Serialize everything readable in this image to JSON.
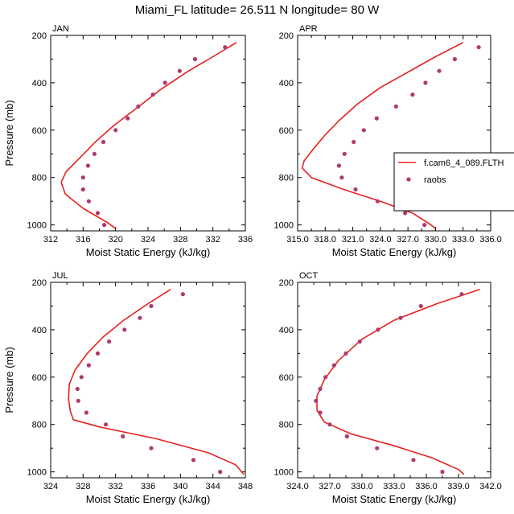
{
  "title": "Miami_FL  latitude= 26.511 N longitude= 80 W",
  "colors": {
    "model": "#e8201f",
    "obs": "#b03a6a",
    "axis": "#000000"
  },
  "legend": {
    "model": "f.cam6_4_089.FLTH",
    "obs": "raobs",
    "placement": "right of APR panel"
  },
  "chart_data": [
    {
      "type": "line",
      "panel": "JAN",
      "xlabel": "Moist Static Energy (kJ/kg)",
      "ylabel": "Pressure (mb)",
      "xlim": [
        312,
        336
      ],
      "ylim": [
        1025,
        200
      ],
      "xticks": [
        312,
        316,
        320,
        324,
        328,
        332,
        336
      ],
      "xtick_labels": [
        "312",
        "316",
        "320",
        "324",
        "328",
        "332",
        "336"
      ],
      "yticks": [
        200,
        400,
        600,
        800,
        1000
      ],
      "ytick_labels": [
        "200",
        "400",
        "600",
        "800",
        "1000"
      ],
      "series": [
        {
          "name": "f.cam6_4_089.FLTH",
          "kind": "line",
          "points": [
            [
              334.9,
              230
            ],
            [
              332.0,
              290
            ],
            [
              329.0,
              350
            ],
            [
              325.5,
              430
            ],
            [
              322.5,
              510
            ],
            [
              319.8,
              580
            ],
            [
              317.5,
              650
            ],
            [
              315.5,
              720
            ],
            [
              313.9,
              775
            ],
            [
              313.3,
              820
            ],
            [
              313.8,
              870
            ],
            [
              316.0,
              930
            ],
            [
              319.0,
              990
            ],
            [
              320.0,
              1015
            ]
          ]
        },
        {
          "name": "raobs",
          "kind": "scatter",
          "points": [
            [
              333.5,
              250
            ],
            [
              329.8,
              300
            ],
            [
              327.9,
              350
            ],
            [
              326.1,
              400
            ],
            [
              324.6,
              450
            ],
            [
              322.8,
              500
            ],
            [
              321.5,
              550
            ],
            [
              320.0,
              600
            ],
            [
              318.5,
              650
            ],
            [
              317.4,
              700
            ],
            [
              316.6,
              750
            ],
            [
              316.0,
              800
            ],
            [
              316.0,
              850
            ],
            [
              316.7,
              900
            ],
            [
              317.8,
              950
            ],
            [
              318.6,
              1000
            ]
          ]
        }
      ]
    },
    {
      "type": "line",
      "panel": "APR",
      "xlabel": "Moist Static Energy (kJ/kg)",
      "ylabel": "",
      "xlim": [
        315,
        336
      ],
      "ylim": [
        1025,
        200
      ],
      "xticks": [
        315,
        318,
        321,
        324,
        327,
        330,
        333,
        336
      ],
      "xtick_labels": [
        "315.0",
        "318.0",
        "321.0",
        "324.0",
        "327.0",
        "330.0",
        "333.0",
        "336.0"
      ],
      "yticks": [
        200,
        400,
        600,
        800,
        1000
      ],
      "ytick_labels": [
        "200",
        "400",
        "600",
        "800",
        "1000"
      ],
      "series": [
        {
          "name": "f.cam6_4_089.FLTH",
          "kind": "line",
          "points": [
            [
              333.0,
              230
            ],
            [
              330.0,
              290
            ],
            [
              327.0,
              355
            ],
            [
              324.0,
              420
            ],
            [
              321.5,
              490
            ],
            [
              319.5,
              560
            ],
            [
              318.0,
              620
            ],
            [
              316.7,
              680
            ],
            [
              315.7,
              730
            ],
            [
              315.5,
              760
            ],
            [
              316.5,
              800
            ],
            [
              320.0,
              850
            ],
            [
              324.0,
              900
            ],
            [
              327.5,
              950
            ],
            [
              329.5,
              1000
            ],
            [
              330.0,
              1015
            ]
          ]
        },
        {
          "name": "raobs",
          "kind": "scatter",
          "points": [
            [
              334.7,
              250
            ],
            [
              332.1,
              300
            ],
            [
              330.4,
              350
            ],
            [
              328.9,
              400
            ],
            [
              327.5,
              450
            ],
            [
              325.7,
              500
            ],
            [
              323.6,
              550
            ],
            [
              322.2,
              600
            ],
            [
              321.1,
              650
            ],
            [
              320.1,
              700
            ],
            [
              319.5,
              750
            ],
            [
              319.8,
              800
            ],
            [
              321.3,
              850
            ],
            [
              323.7,
              900
            ],
            [
              326.7,
              950
            ],
            [
              328.8,
              1000
            ]
          ]
        }
      ]
    },
    {
      "type": "line",
      "panel": "JUL",
      "xlabel": "Moist Static Energy (kJ/kg)",
      "ylabel": "Pressure (mb)",
      "xlim": [
        324,
        348
      ],
      "ylim": [
        1025,
        200
      ],
      "xticks": [
        324,
        328,
        332,
        336,
        340,
        344,
        348
      ],
      "xtick_labels": [
        "324",
        "328",
        "332",
        "336",
        "340",
        "344",
        "348"
      ],
      "yticks": [
        200,
        400,
        600,
        800,
        1000
      ],
      "ytick_labels": [
        "200",
        "400",
        "600",
        "800",
        "1000"
      ],
      "series": [
        {
          "name": "f.cam6_4_089.FLTH",
          "kind": "line",
          "points": [
            [
              338.8,
              230
            ],
            [
              336.0,
              290
            ],
            [
              333.0,
              360
            ],
            [
              330.5,
              430
            ],
            [
              328.5,
              500
            ],
            [
              327.0,
              570
            ],
            [
              326.3,
              630
            ],
            [
              326.2,
              690
            ],
            [
              326.4,
              740
            ],
            [
              326.8,
              780
            ],
            [
              330.0,
              810
            ],
            [
              337.0,
              860
            ],
            [
              343.5,
              920
            ],
            [
              346.8,
              970
            ],
            [
              347.8,
              1010
            ]
          ]
        },
        {
          "name": "raobs",
          "kind": "scatter",
          "points": [
            [
              340.3,
              250
            ],
            [
              336.4,
              300
            ],
            [
              335.0,
              350
            ],
            [
              333.1,
              400
            ],
            [
              331.2,
              450
            ],
            [
              329.8,
              500
            ],
            [
              328.7,
              550
            ],
            [
              327.8,
              600
            ],
            [
              327.3,
              650
            ],
            [
              327.4,
              700
            ],
            [
              328.4,
              750
            ],
            [
              330.8,
              800
            ],
            [
              332.9,
              850
            ],
            [
              336.4,
              900
            ],
            [
              341.6,
              950
            ],
            [
              344.9,
              1000
            ]
          ]
        }
      ]
    },
    {
      "type": "line",
      "panel": "OCT",
      "xlabel": "Moist Static Energy (kJ/kg)",
      "ylabel": "",
      "xlim": [
        324,
        342
      ],
      "ylim": [
        1025,
        200
      ],
      "xticks": [
        324,
        327,
        330,
        333,
        336,
        339,
        342
      ],
      "xtick_labels": [
        "324.0",
        "327.0",
        "330.0",
        "333.0",
        "336.0",
        "339.0",
        "342.0"
      ],
      "yticks": [
        200,
        400,
        600,
        800,
        1000
      ],
      "ytick_labels": [
        "200",
        "400",
        "600",
        "800",
        "1000"
      ],
      "series": [
        {
          "name": "f.cam6_4_089.FLTH",
          "kind": "line",
          "points": [
            [
              341.0,
              230
            ],
            [
              337.0,
              290
            ],
            [
              333.0,
              360
            ],
            [
              330.0,
              440
            ],
            [
              327.8,
              530
            ],
            [
              326.5,
              610
            ],
            [
              325.8,
              680
            ],
            [
              325.8,
              740
            ],
            [
              326.5,
              790
            ],
            [
              329.0,
              840
            ],
            [
              333.0,
              890
            ],
            [
              336.5,
              940
            ],
            [
              339.0,
              990
            ],
            [
              339.5,
              1010
            ]
          ]
        },
        {
          "name": "raobs",
          "kind": "scatter",
          "points": [
            [
              339.3,
              250
            ],
            [
              335.5,
              300
            ],
            [
              333.6,
              350
            ],
            [
              331.5,
              400
            ],
            [
              329.8,
              450
            ],
            [
              328.5,
              500
            ],
            [
              327.4,
              550
            ],
            [
              326.6,
              600
            ],
            [
              326.1,
              650
            ],
            [
              325.7,
              700
            ],
            [
              326.1,
              750
            ],
            [
              327.0,
              800
            ],
            [
              328.6,
              850
            ],
            [
              331.4,
              900
            ],
            [
              334.8,
              950
            ],
            [
              337.5,
              1000
            ]
          ]
        }
      ]
    }
  ]
}
